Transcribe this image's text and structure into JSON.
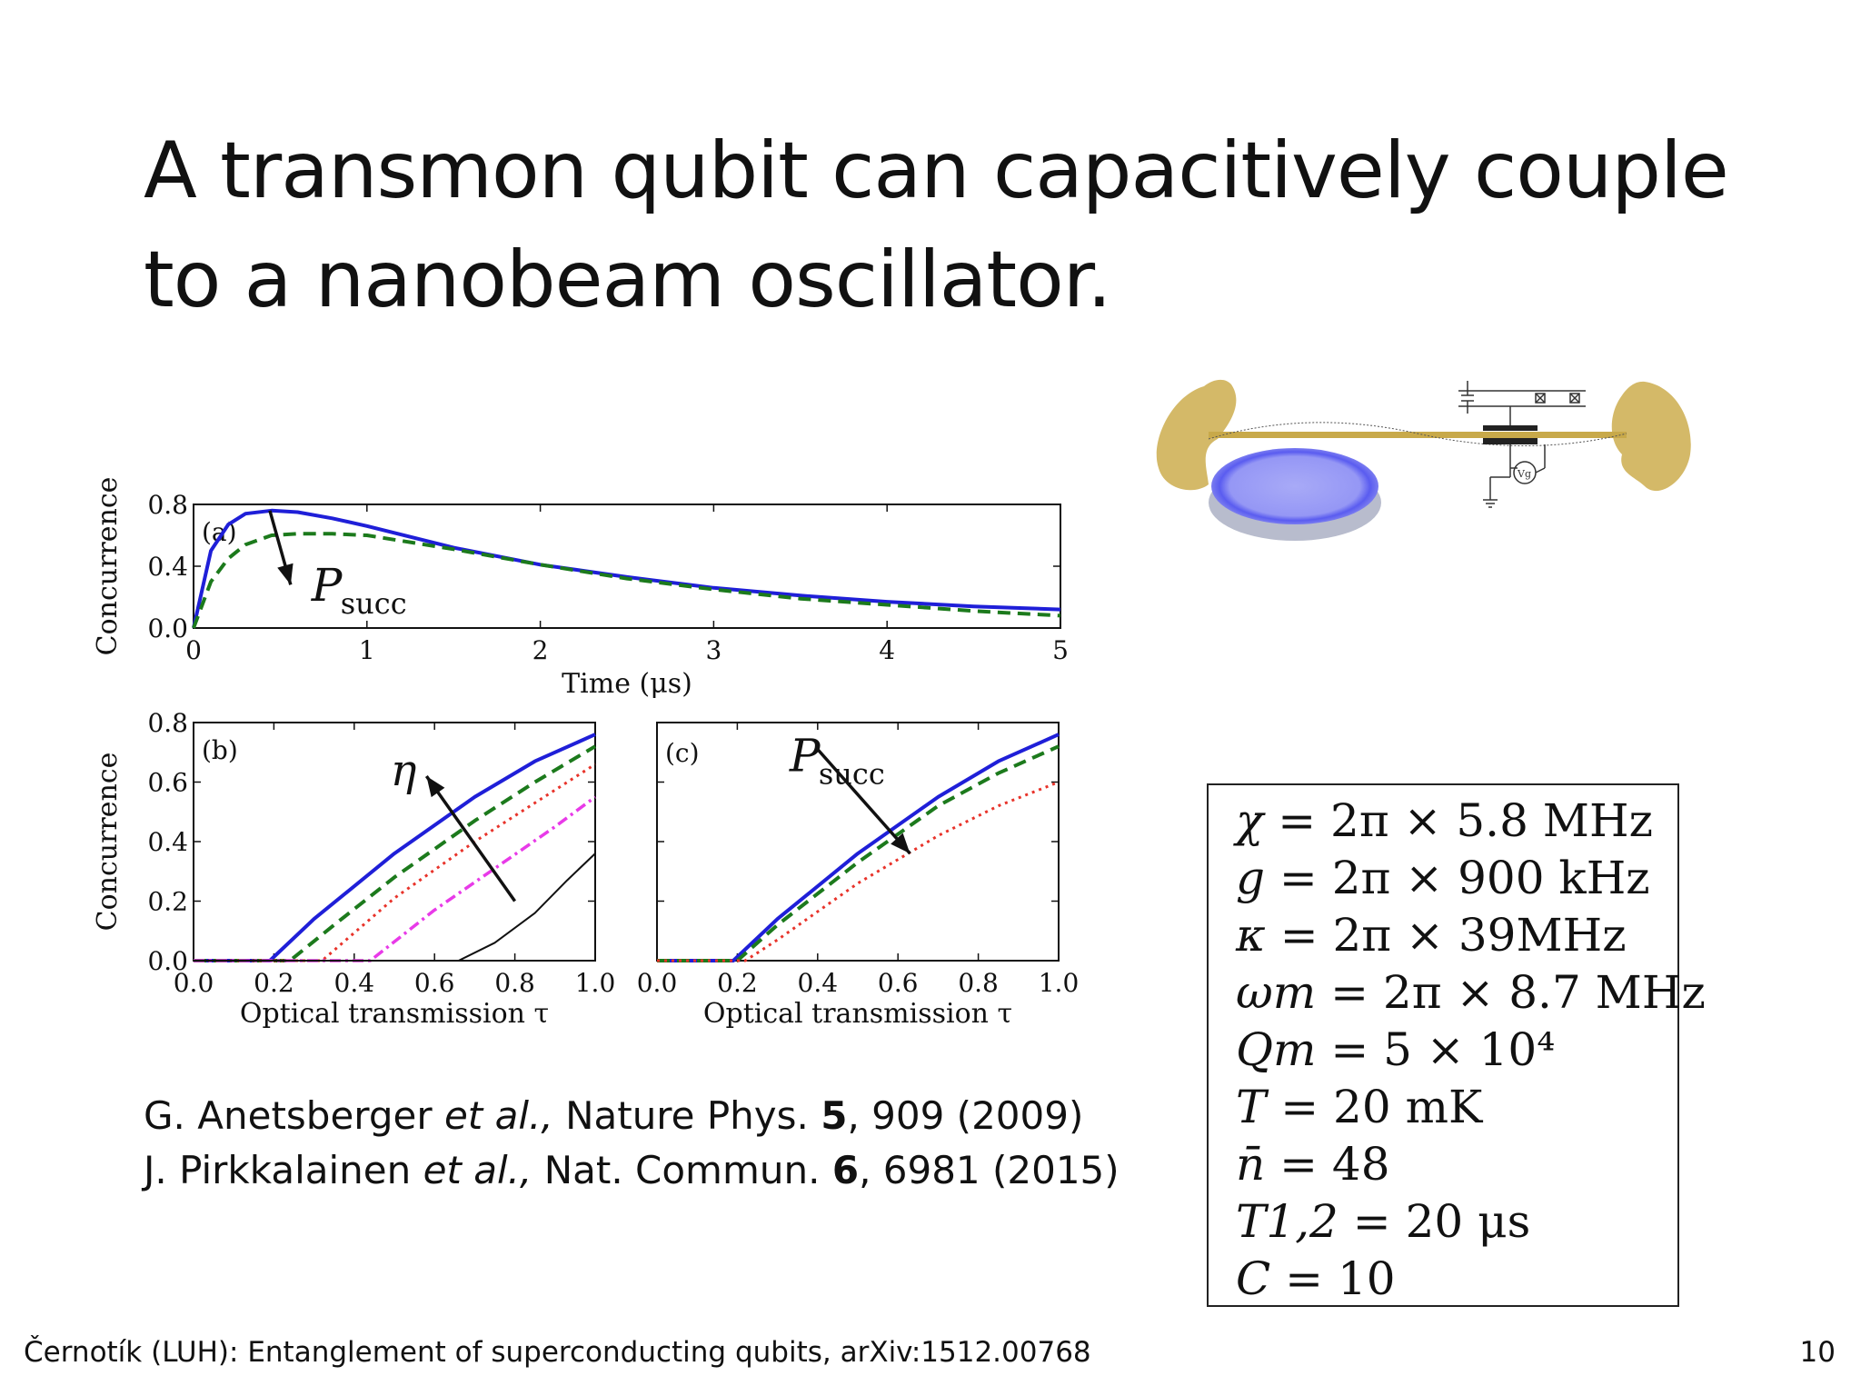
{
  "slide": {
    "title_line1": "A transmon qubit can capacitively couple",
    "title_line2": "to a nanobeam oscillator.",
    "footer": "Černotík (LUH): Entanglement of superconducting qubits, arXiv:1512.00768",
    "page_number": "10"
  },
  "references": [
    {
      "authors": "G. Anetsberger",
      "etal": "et al.,",
      "journal": " Nature Phys. ",
      "volume": "5",
      "rest": ", 909 (2009)"
    },
    {
      "authors": "J. Pirkkalainen",
      "etal": "et al.,",
      "journal": " Nat. Commun. ",
      "volume": "6",
      "rest": ", 6981 (2015)"
    }
  ],
  "parameters": [
    {
      "lhs": "χ",
      "rhs": "= 2π × 5.8 MHz"
    },
    {
      "lhs": "g",
      "rhs": "= 2π × 900 kHz"
    },
    {
      "lhs": "κ",
      "rhs": "= 2π × 39MHz"
    },
    {
      "lhs": "ωm",
      "rhs": "= 2π × 8.7 MHz"
    },
    {
      "lhs": "Qm",
      "rhs": "= 5 × 10⁴"
    },
    {
      "lhs": "T",
      "rhs": "= 20 mK"
    },
    {
      "lhs": "n̄",
      "rhs": "= 48"
    },
    {
      "lhs": "T1,2",
      "rhs": "= 20 μs"
    },
    {
      "lhs": "C",
      "rhs": "= 10"
    }
  ],
  "diagram": {
    "gate_label": "Vg",
    "colors": {
      "pad": "#d4b968",
      "membrane": "#7b7df2",
      "wire": "#333333"
    }
  },
  "colors": {
    "blue": "#1f1fd8",
    "green": "#1c7a1c",
    "red": "#e8332a",
    "magenta": "#e83ae8",
    "black": "#111111"
  },
  "chart_data": [
    {
      "type": "line",
      "panel_label": "(a)",
      "xlabel": "Time (μs)",
      "ylabel": "Concurrence",
      "xlim": [
        0,
        5
      ],
      "ylim": [
        0,
        0.8
      ],
      "xticks": [
        "0",
        "1",
        "2",
        "3",
        "4",
        "5"
      ],
      "yticks": [
        "0.0",
        "0.4",
        "0.8"
      ],
      "annotation": "P_succ",
      "series": [
        {
          "style": "solid",
          "color": "blue",
          "x": [
            0,
            0.1,
            0.2,
            0.3,
            0.45,
            0.6,
            0.8,
            1.0,
            1.5,
            2.0,
            2.5,
            3.0,
            3.5,
            4.0,
            4.5,
            5.0
          ],
          "y": [
            0,
            0.5,
            0.67,
            0.74,
            0.76,
            0.75,
            0.71,
            0.66,
            0.52,
            0.41,
            0.33,
            0.26,
            0.21,
            0.17,
            0.14,
            0.12
          ]
        },
        {
          "style": "dashed",
          "color": "green",
          "x": [
            0,
            0.1,
            0.2,
            0.3,
            0.45,
            0.6,
            0.8,
            1.0,
            1.5,
            2.0,
            2.5,
            3.0,
            3.5,
            4.0,
            4.5,
            5.0
          ],
          "y": [
            0,
            0.3,
            0.45,
            0.54,
            0.6,
            0.61,
            0.61,
            0.6,
            0.51,
            0.41,
            0.32,
            0.25,
            0.19,
            0.15,
            0.11,
            0.08
          ]
        }
      ]
    },
    {
      "type": "line",
      "panel_label": "(b)",
      "xlabel": "Optical transmission τ",
      "ylabel": "Concurrence",
      "xlim": [
        0,
        1
      ],
      "ylim": [
        0,
        0.8
      ],
      "xticks": [
        "0.0",
        "0.2",
        "0.4",
        "0.6",
        "0.8",
        "1.0"
      ],
      "yticks": [
        "0.0",
        "0.2",
        "0.4",
        "0.6",
        "0.8"
      ],
      "annotation": "η",
      "series": [
        {
          "style": "solid",
          "color": "blue",
          "x": [
            0,
            0.19,
            0.3,
            0.5,
            0.7,
            0.85,
            1.0
          ],
          "y": [
            0,
            0,
            0.14,
            0.36,
            0.55,
            0.67,
            0.76
          ]
        },
        {
          "style": "dashed",
          "color": "green",
          "x": [
            0,
            0.24,
            0.35,
            0.5,
            0.7,
            0.85,
            1.0
          ],
          "y": [
            0,
            0,
            0.12,
            0.28,
            0.47,
            0.6,
            0.72
          ]
        },
        {
          "style": "dotted",
          "color": "red",
          "x": [
            0,
            0.32,
            0.5,
            0.7,
            0.85,
            1.0
          ],
          "y": [
            0,
            0,
            0.21,
            0.4,
            0.53,
            0.66
          ]
        },
        {
          "style": "dashdot",
          "color": "magenta",
          "x": [
            0,
            0.44,
            0.6,
            0.75,
            0.9,
            1.0
          ],
          "y": [
            0,
            0,
            0.17,
            0.31,
            0.45,
            0.55
          ]
        },
        {
          "style": "thin",
          "color": "black",
          "x": [
            0,
            0.66,
            0.75,
            0.85,
            0.93,
            1.0
          ],
          "y": [
            0,
            0,
            0.06,
            0.16,
            0.27,
            0.36
          ]
        }
      ]
    },
    {
      "type": "line",
      "panel_label": "(c)",
      "xlabel": "Optical transmission τ",
      "ylabel": "",
      "xlim": [
        0,
        1
      ],
      "ylim": [
        0,
        0.8
      ],
      "xticks": [
        "0.0",
        "0.2",
        "0.4",
        "0.6",
        "0.8",
        "1.0"
      ],
      "yticks": [],
      "annotation": "P_succ",
      "series": [
        {
          "style": "solid",
          "color": "blue",
          "x": [
            0,
            0.19,
            0.3,
            0.5,
            0.7,
            0.85,
            1.0
          ],
          "y": [
            0,
            0,
            0.14,
            0.36,
            0.55,
            0.67,
            0.76
          ]
        },
        {
          "style": "dashed",
          "color": "green",
          "x": [
            0,
            0.2,
            0.3,
            0.5,
            0.7,
            0.85,
            1.0
          ],
          "y": [
            0,
            0,
            0.12,
            0.33,
            0.52,
            0.63,
            0.72
          ]
        },
        {
          "style": "dotted",
          "color": "red",
          "x": [
            0,
            0.22,
            0.3,
            0.5,
            0.7,
            0.85,
            1.0
          ],
          "y": [
            0,
            0,
            0.07,
            0.26,
            0.42,
            0.52,
            0.6
          ]
        }
      ]
    }
  ]
}
